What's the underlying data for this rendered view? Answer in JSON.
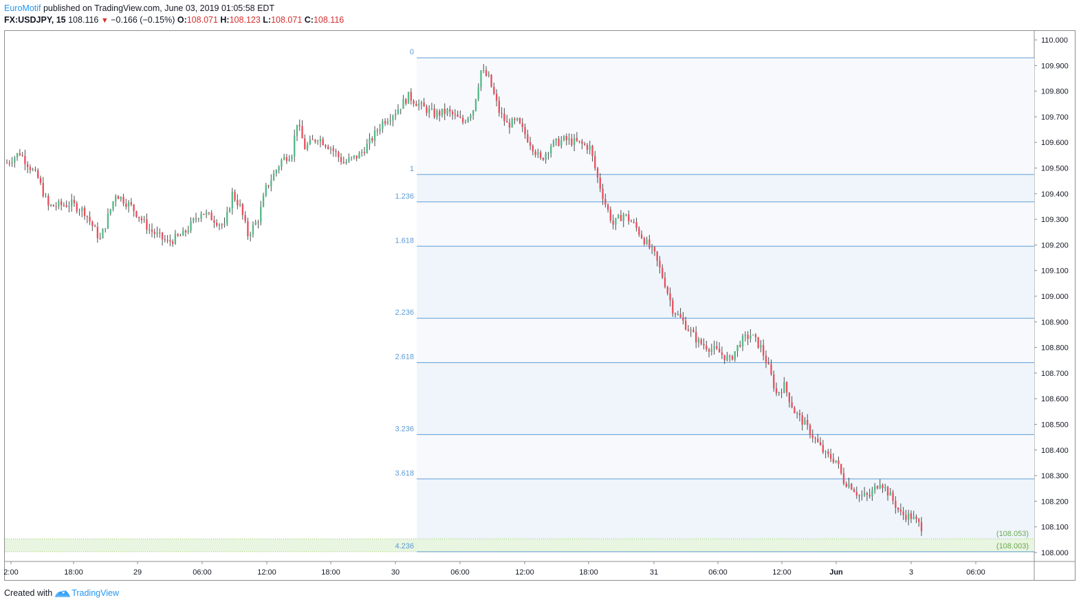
{
  "header": {
    "author": "EuroMotif",
    "published_text": " published on TradingView.com, June 03, 2019 01:05:58 EDT",
    "symbol": "FX:USDJPY, 15",
    "last": "108.116",
    "arrow": "▼",
    "change": "−0.166 (−0.15%)",
    "o_label": "O:",
    "o_value": "108.071",
    "h_label": "H:",
    "h_value": "108.123",
    "l_label": "L:",
    "l_value": "108.071",
    "c_label": "C:",
    "c_value": "108.116"
  },
  "footer": {
    "created_with": "Created with",
    "brand": "TradingView",
    "logo_icon": "tradingview-cloud-icon"
  },
  "colors": {
    "up": "#53b987",
    "down": "#eb4d5c",
    "fib_line": "#5b9bd5",
    "fib_fill": "#eef4fb",
    "target_fill": "#e8f5e0",
    "target_text": "#6aa84f"
  },
  "chart_data": {
    "type": "candlestick",
    "title": "",
    "xlabel": "",
    "ylabel": "",
    "ylim": [
      107.965,
      110.035
    ],
    "y_ticks": [
      "110.000",
      "109.900",
      "109.800",
      "109.700",
      "109.600",
      "109.500",
      "109.400",
      "109.300",
      "109.200",
      "109.100",
      "109.000",
      "108.900",
      "108.800",
      "108.700",
      "108.600",
      "108.500",
      "108.400",
      "108.300",
      "108.200",
      "108.100",
      "108.000"
    ],
    "x_ticks": [
      "2:00",
      "18:00",
      "29",
      "06:00",
      "12:00",
      "18:00",
      "30",
      "06:00",
      "12:00",
      "18:00",
      "31",
      "06:00",
      "12:00",
      "Jun",
      "3",
      "06:00"
    ],
    "x_ticks_bold": [
      "Jun"
    ],
    "fibonacci": {
      "levels": [
        {
          "label": "0",
          "price": 109.93
        },
        {
          "label": "1",
          "price": 109.475
        },
        {
          "label": "1.236",
          "price": 109.368
        },
        {
          "label": "1.618",
          "price": 109.195
        },
        {
          "label": "2.236",
          "price": 108.914
        },
        {
          "label": "2.618",
          "price": 108.741
        },
        {
          "label": "3.236",
          "price": 108.46
        },
        {
          "label": "3.618",
          "price": 108.287
        },
        {
          "label": "4.236",
          "price": 108.003
        }
      ]
    },
    "target_zone": {
      "upper": 108.053,
      "lower": 108.003,
      "upper_label": "(108.053)",
      "lower_label": "(108.003)"
    },
    "waypoints": [
      [
        0,
        109.52
      ],
      [
        5,
        109.56
      ],
      [
        12,
        109.46
      ],
      [
        16,
        109.35
      ],
      [
        25,
        109.36
      ],
      [
        30,
        109.33
      ],
      [
        36,
        109.22
      ],
      [
        42,
        109.4
      ],
      [
        48,
        109.35
      ],
      [
        55,
        109.26
      ],
      [
        62,
        109.21
      ],
      [
        68,
        109.24
      ],
      [
        75,
        109.33
      ],
      [
        80,
        109.3
      ],
      [
        84,
        109.27
      ],
      [
        87,
        109.4
      ],
      [
        90,
        109.35
      ],
      [
        93,
        109.24
      ],
      [
        97,
        109.3
      ],
      [
        100,
        109.42
      ],
      [
        106,
        109.53
      ],
      [
        110,
        109.56
      ],
      [
        112,
        109.68
      ],
      [
        115,
        109.58
      ],
      [
        120,
        109.62
      ],
      [
        125,
        109.58
      ],
      [
        130,
        109.52
      ],
      [
        136,
        109.55
      ],
      [
        140,
        109.6
      ],
      [
        145,
        109.68
      ],
      [
        150,
        109.72
      ],
      [
        155,
        109.78
      ],
      [
        160,
        109.74
      ],
      [
        165,
        109.71
      ],
      [
        170,
        109.72
      ],
      [
        176,
        109.68
      ],
      [
        180,
        109.73
      ],
      [
        183,
        109.88
      ],
      [
        186,
        109.85
      ],
      [
        190,
        109.72
      ],
      [
        193,
        109.67
      ],
      [
        197,
        109.68
      ],
      [
        202,
        109.6
      ],
      [
        206,
        109.53
      ],
      [
        210,
        109.59
      ],
      [
        215,
        109.61
      ],
      [
        220,
        109.6
      ],
      [
        225,
        109.58
      ],
      [
        228,
        109.46
      ],
      [
        231,
        109.36
      ],
      [
        234,
        109.28
      ],
      [
        238,
        109.32
      ],
      [
        242,
        109.28
      ],
      [
        246,
        109.22
      ],
      [
        250,
        109.16
      ],
      [
        254,
        109.05
      ],
      [
        257,
        108.95
      ],
      [
        261,
        108.9
      ],
      [
        264,
        108.86
      ],
      [
        267,
        108.82
      ],
      [
        271,
        108.8
      ],
      [
        275,
        108.78
      ],
      [
        279,
        108.75
      ],
      [
        283,
        108.82
      ],
      [
        287,
        108.85
      ],
      [
        291,
        108.8
      ],
      [
        294,
        108.72
      ],
      [
        297,
        108.62
      ],
      [
        300,
        108.65
      ],
      [
        304,
        108.55
      ],
      [
        308,
        108.5
      ],
      [
        312,
        108.44
      ],
      [
        316,
        108.38
      ],
      [
        320,
        108.36
      ],
      [
        323,
        108.28
      ],
      [
        326,
        108.26
      ],
      [
        329,
        108.22
      ],
      [
        333,
        108.22
      ],
      [
        337,
        108.28
      ],
      [
        341,
        108.22
      ],
      [
        345,
        108.15
      ],
      [
        349,
        108.14
      ],
      [
        353,
        108.1
      ]
    ]
  }
}
